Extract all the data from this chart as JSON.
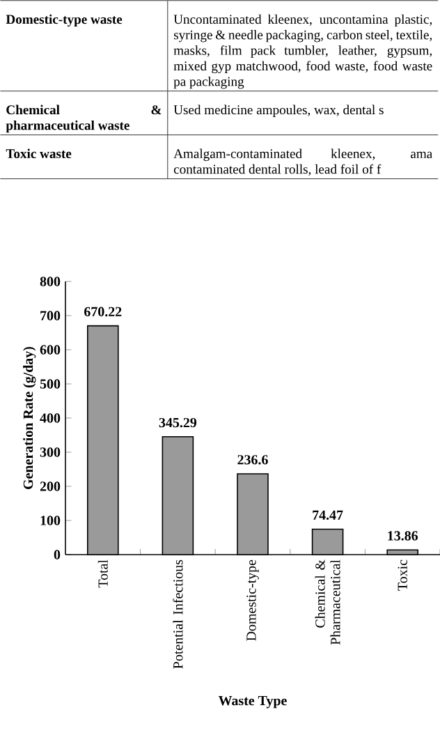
{
  "chart_data": [
    {
      "type": "other",
      "annotations": [
        "Domestic-type waste",
        "Uncontaminated kleenex, uncontamina plastic, syringe & needle packaging, carbon steel, textile, masks, film pack tumbler, leather, gypsum, mixed gyp matchwood, food waste, food waste pa packaging",
        "Chemical & pharmaceutical waste",
        "Used medicine ampoules, wax, dental s",
        "Toxic waste",
        "Amalgam-contaminated kleenex, ama contaminated dental rolls, lead foil of f"
      ]
    },
    {
      "type": "bar",
      "xlabel": "Waste Type",
      "ylabel": "Generation Rate (g/day)",
      "categories": [
        "Total",
        "Potential Infectious",
        "Domestic-type",
        "Chemical & Pharmaceutical",
        "Toxic"
      ],
      "values": [
        670.22,
        345.29,
        236.6,
        74.47,
        13.86
      ],
      "color": "#9a9a9a",
      "ylim": [
        0,
        800
      ],
      "yticks": [
        0,
        100,
        200,
        300,
        400,
        500,
        600,
        700,
        800
      ],
      "data_labels": true
    }
  ]
}
